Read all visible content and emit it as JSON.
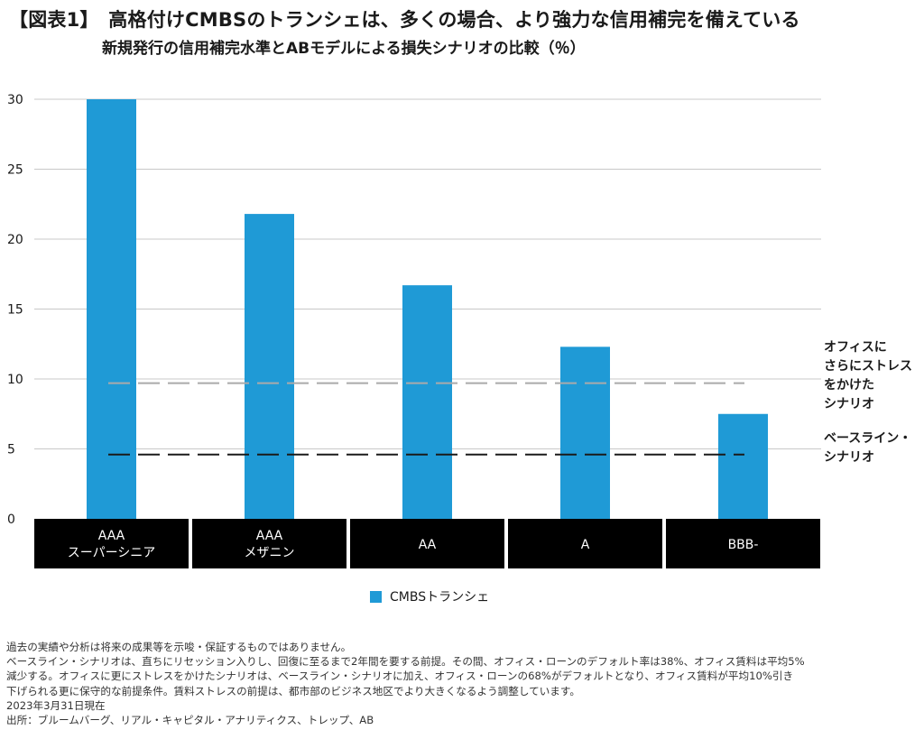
{
  "title": "【図表1】　高格付けCMBSのトランシェは、多くの場合、より強力な信用補完を備えている",
  "subtitle": "新規発行の信用補完水準とABモデルによる損失シナリオの比較（％）",
  "colors": {
    "bar": "#1f9ad6",
    "category_bg": "#000000",
    "category_text": "#ffffff",
    "stress_line": "#aaaaaa",
    "baseline_line": "#1a1a1a",
    "grid": "#c8c8c8"
  },
  "chart_data": {
    "type": "bar",
    "categories": [
      [
        "AAA",
        "スーパーシニア"
      ],
      [
        "AAA",
        "メザニン"
      ],
      [
        "AA"
      ],
      [
        "A"
      ],
      [
        "BBB-"
      ]
    ],
    "series": [
      {
        "name": "CMBSトランシェ",
        "values": [
          30.0,
          21.8,
          16.7,
          12.3,
          7.5
        ]
      }
    ],
    "yticks": [
      0,
      5,
      10,
      15,
      20,
      25,
      30
    ],
    "ylim": [
      0,
      30
    ],
    "grid": true,
    "legend_position": "bottom-center",
    "reference_lines": [
      {
        "label_lines": [
          "オフィスに",
          "さらにストレス",
          "をかけた",
          "シナリオ"
        ],
        "value": 9.7,
        "style": "dashed-gray"
      },
      {
        "label_lines": [
          "ベースライン・",
          "シナリオ"
        ],
        "value": 4.6,
        "style": "dashed-black"
      }
    ]
  },
  "notes": [
    "過去の実績や分析は将来の成果等を示唆・保証するものではありません。",
    "ベースライン・シナリオは、直ちにリセッション入りし、回復に至るまで2年間を要する前提。その間、オフィス・ローンのデフォルト率は38%、オフィス賃料は平均5%",
    "減少する。オフィスに更にストレスをかけたシナリオは、ベースライン・シナリオに加え、オフィス・ローンの68%がデフォルトとなり、オフィス賃料が平均10%引き",
    "下げられる更に保守的な前提条件。賃料ストレスの前提は、都市部のビジネス地区でより大きくなるよう調整しています。",
    "2023年3月31日現在",
    "出所：ブルームバーグ、リアル・キャピタル・アナリティクス、トレップ、AB"
  ]
}
